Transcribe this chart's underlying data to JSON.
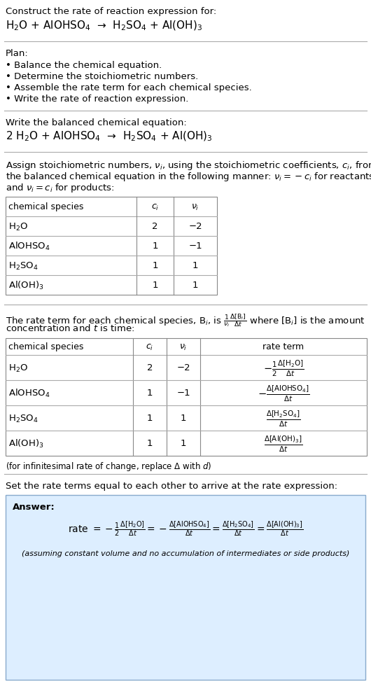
{
  "bg_color": "#ffffff",
  "answer_box_color": "#ddeeff",
  "title_text": "Construct the rate of reaction expression for:",
  "reaction_unbalanced": "H$_2$O + AlOHSO$_4$  →  H$_2$SO$_4$ + Al(OH)$_3$",
  "plan_header": "Plan:",
  "plan_steps": [
    "• Balance the chemical equation.",
    "• Determine the stoichiometric numbers.",
    "• Assemble the rate term for each chemical species.",
    "• Write the rate of reaction expression."
  ],
  "balanced_header": "Write the balanced chemical equation:",
  "reaction_balanced": "2 H$_2$O + AlOHSO$_4$  →  H$_2$SO$_4$ + Al(OH)$_3$",
  "stoich_intro_lines": [
    "Assign stoichiometric numbers, $\\nu_i$, using the stoichiometric coefficients, $c_i$, from",
    "the balanced chemical equation in the following manner: $\\nu_i = -c_i$ for reactants",
    "and $\\nu_i = c_i$ for products:"
  ],
  "table1_headers": [
    "chemical species",
    "$c_i$",
    "$\\nu_i$"
  ],
  "table1_rows": [
    [
      "H$_2$O",
      "2",
      "−2"
    ],
    [
      "AlOHSO$_4$",
      "1",
      "−1"
    ],
    [
      "H$_2$SO$_4$",
      "1",
      "1"
    ],
    [
      "Al(OH)$_3$",
      "1",
      "1"
    ]
  ],
  "rate_intro_lines": [
    "The rate term for each chemical species, B$_i$, is $\\frac{1}{\\nu_i}\\frac{\\Delta[\\mathrm{B}_i]}{\\Delta t}$ where [B$_i$] is the amount",
    "concentration and $t$ is time:"
  ],
  "table2_headers": [
    "chemical species",
    "$c_i$",
    "$\\nu_i$",
    "rate term"
  ],
  "table2_rows": [
    [
      "H$_2$O",
      "2",
      "−2",
      "$-\\frac{1}{2}\\frac{\\Delta[\\mathrm{H_2O}]}{\\Delta t}$"
    ],
    [
      "AlOHSO$_4$",
      "1",
      "−1",
      "$-\\frac{\\Delta[\\mathrm{AlOHSO_4}]}{\\Delta t}$"
    ],
    [
      "H$_2$SO$_4$",
      "1",
      "1",
      "$\\frac{\\Delta[\\mathrm{H_2SO_4}]}{\\Delta t}$"
    ],
    [
      "Al(OH)$_3$",
      "1",
      "1",
      "$\\frac{\\Delta[\\mathrm{Al(OH)_3}]}{\\Delta t}$"
    ]
  ],
  "infinitesimal_note": "(for infinitesimal rate of change, replace Δ with $d$)",
  "set_equal_text": "Set the rate terms equal to each other to arrive at the rate expression:",
  "answer_label": "Answer:",
  "rate_expression": "rate $= -\\frac{1}{2}\\frac{\\Delta[\\mathrm{H_2O}]}{\\Delta t} = -\\frac{\\Delta[\\mathrm{AlOHSO_4}]}{\\Delta t} = \\frac{\\Delta[\\mathrm{H_2SO_4}]}{\\Delta t} = \\frac{\\Delta[\\mathrm{Al(OH)_3}]}{\\Delta t}$",
  "assuming_note": "(assuming constant volume and no accumulation of intermediates or side products)"
}
